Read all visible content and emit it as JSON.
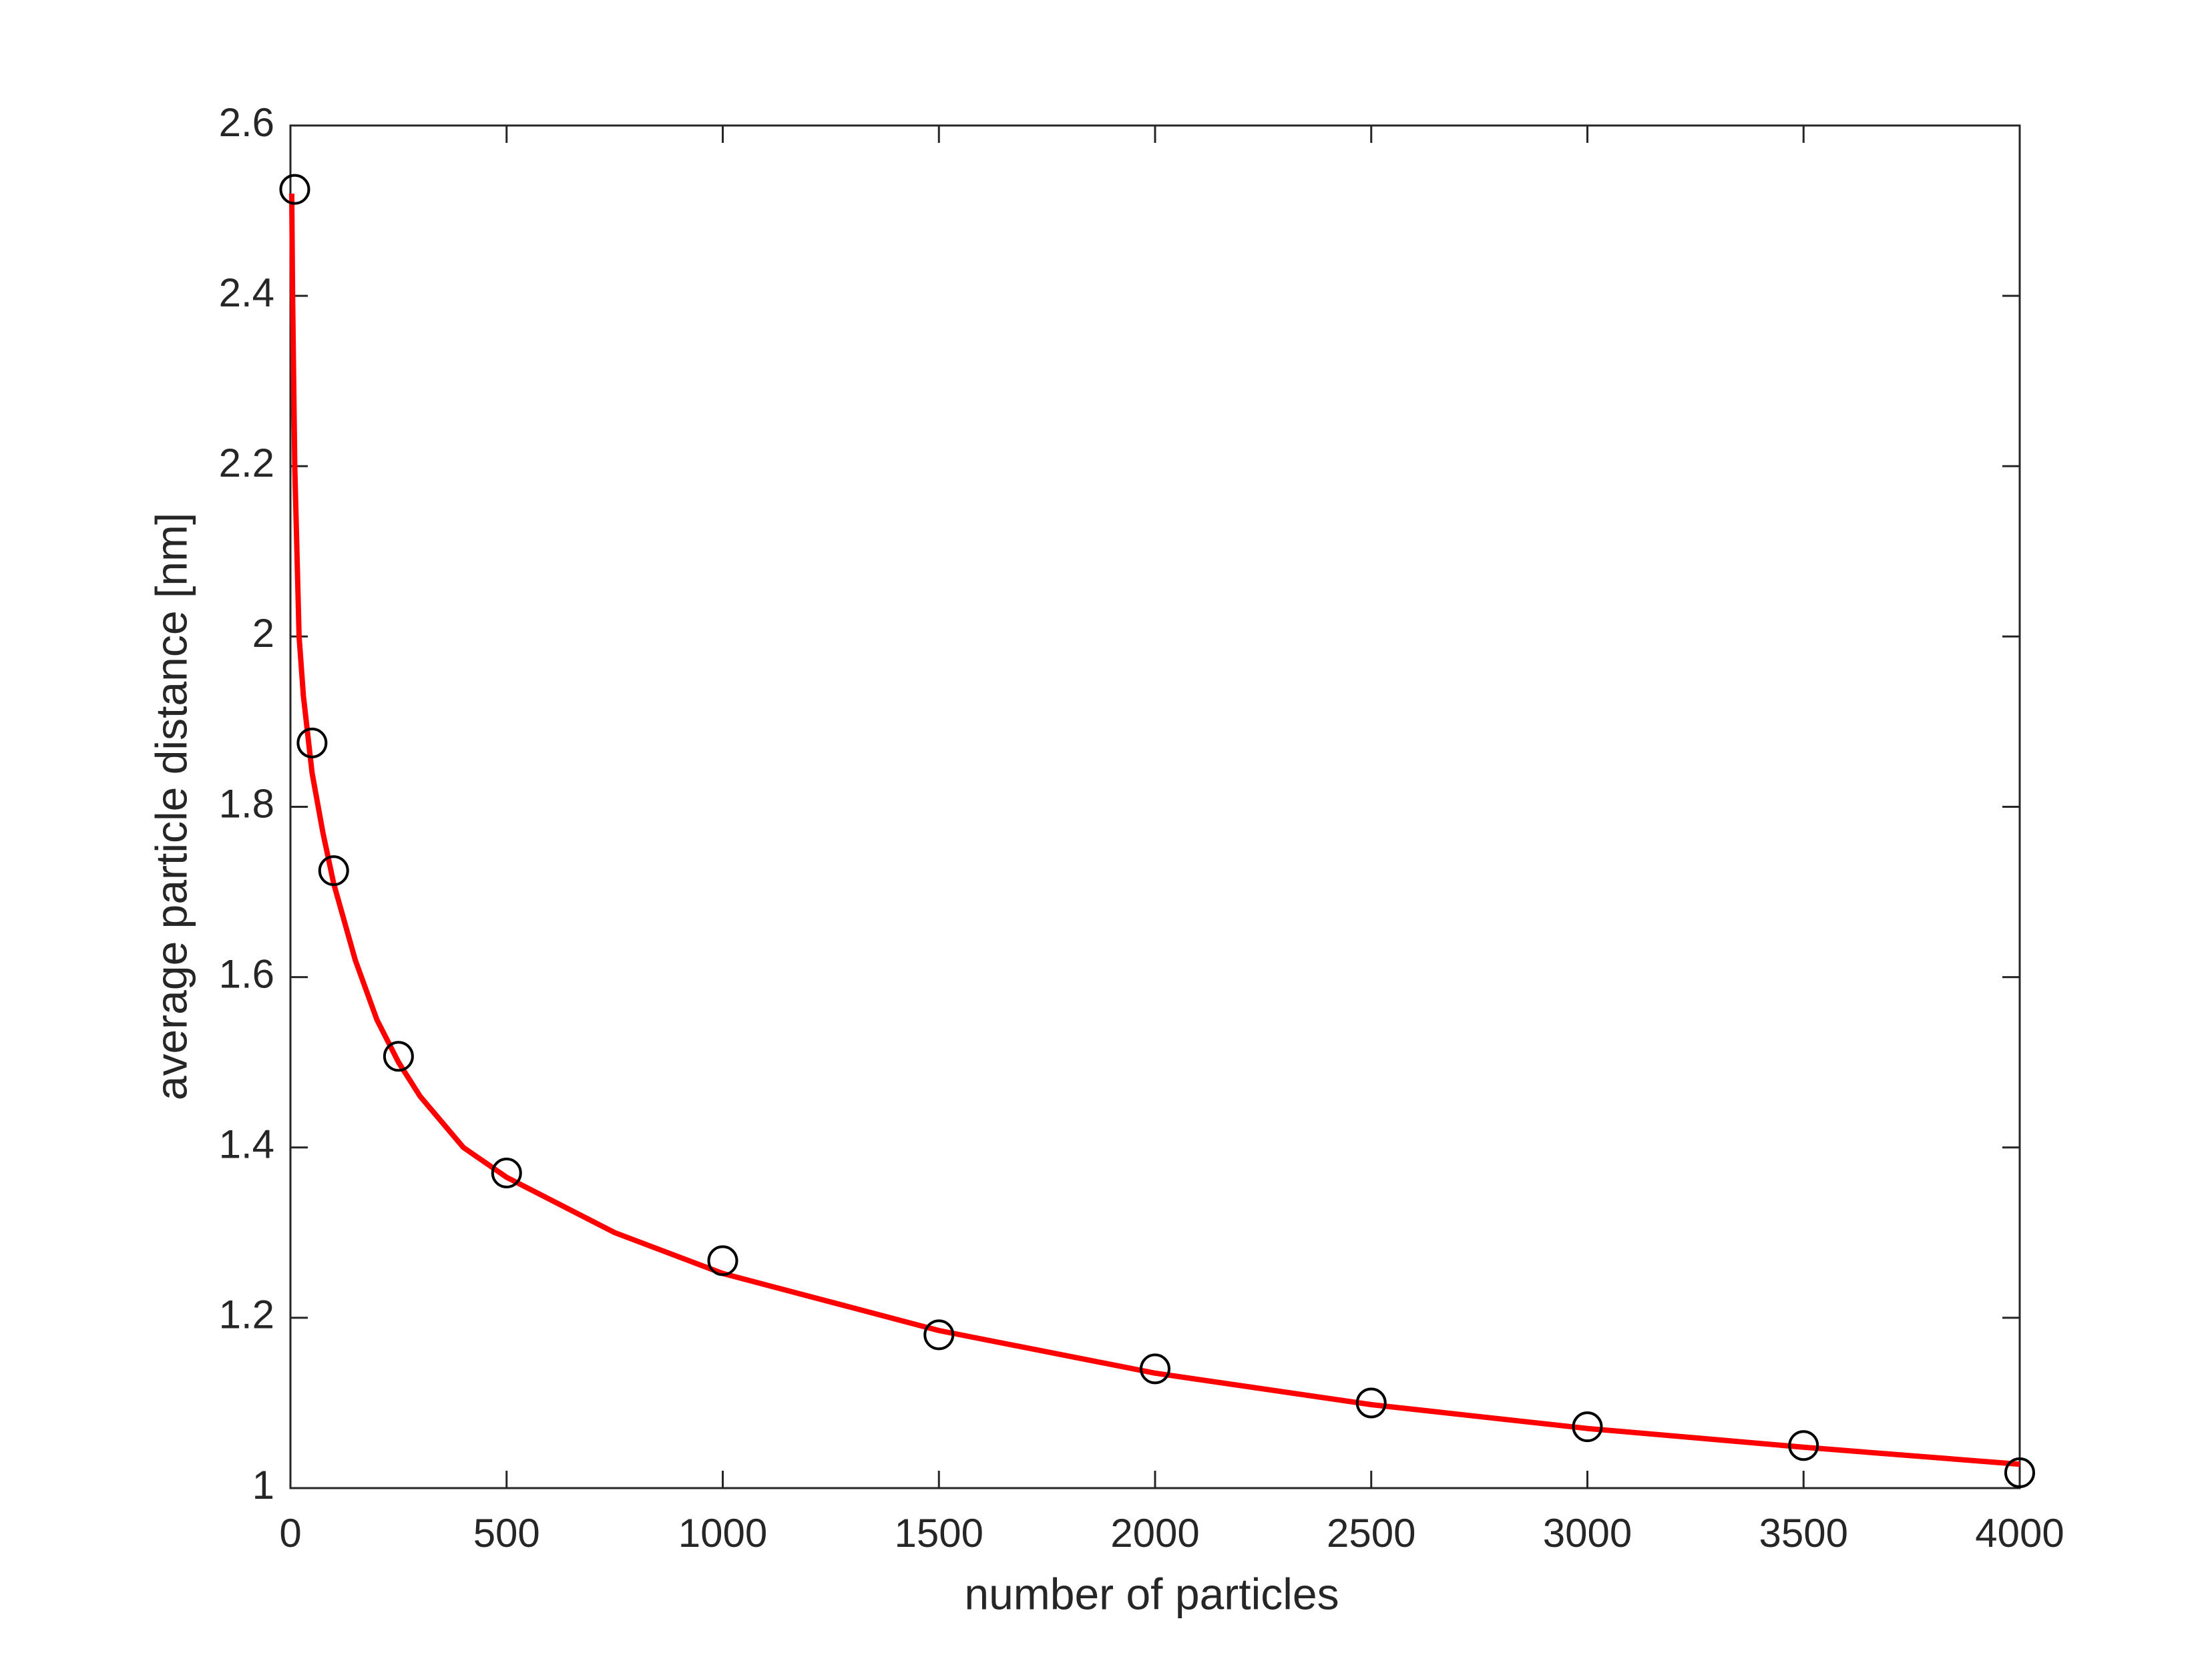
{
  "chart_data": {
    "type": "scatter",
    "xlabel": "number of particles",
    "ylabel": "average particle distance [nm]",
    "xlim": [
      0,
      4000
    ],
    "xticks": [
      0,
      500,
      1000,
      1500,
      2000,
      2500,
      3000,
      3500,
      4000
    ],
    "ylim": [
      1,
      2.6
    ],
    "yticks": [
      1,
      1.2,
      1.4,
      1.6,
      1.8,
      2,
      2.2,
      2.4,
      2.6
    ],
    "grid": false,
    "series": [
      {
        "type": "scatter",
        "color": "#000000",
        "x": [
          10,
          50,
          100,
          250,
          500,
          1000,
          1500,
          2000,
          2500,
          3000,
          3500,
          4000
        ],
        "values": [
          2.525,
          1.875,
          1.725,
          1.507,
          1.37,
          1.267,
          1.18,
          1.14,
          1.1,
          1.072,
          1.05,
          1.018
        ]
      },
      {
        "type": "line",
        "color": "#ff0000",
        "x": [
          3,
          5,
          10,
          20,
          30,
          50,
          75,
          100,
          150,
          200,
          250,
          300,
          400,
          500,
          750,
          1000,
          1500,
          2000,
          2500,
          3000,
          3500,
          4000
        ],
        "values": [
          2.52,
          2.4,
          2.2,
          2.0,
          1.93,
          1.84,
          1.77,
          1.71,
          1.62,
          1.55,
          1.5,
          1.46,
          1.4,
          1.365,
          1.3,
          1.252,
          1.185,
          1.135,
          1.098,
          1.07,
          1.048,
          1.028
        ]
      }
    ]
  }
}
